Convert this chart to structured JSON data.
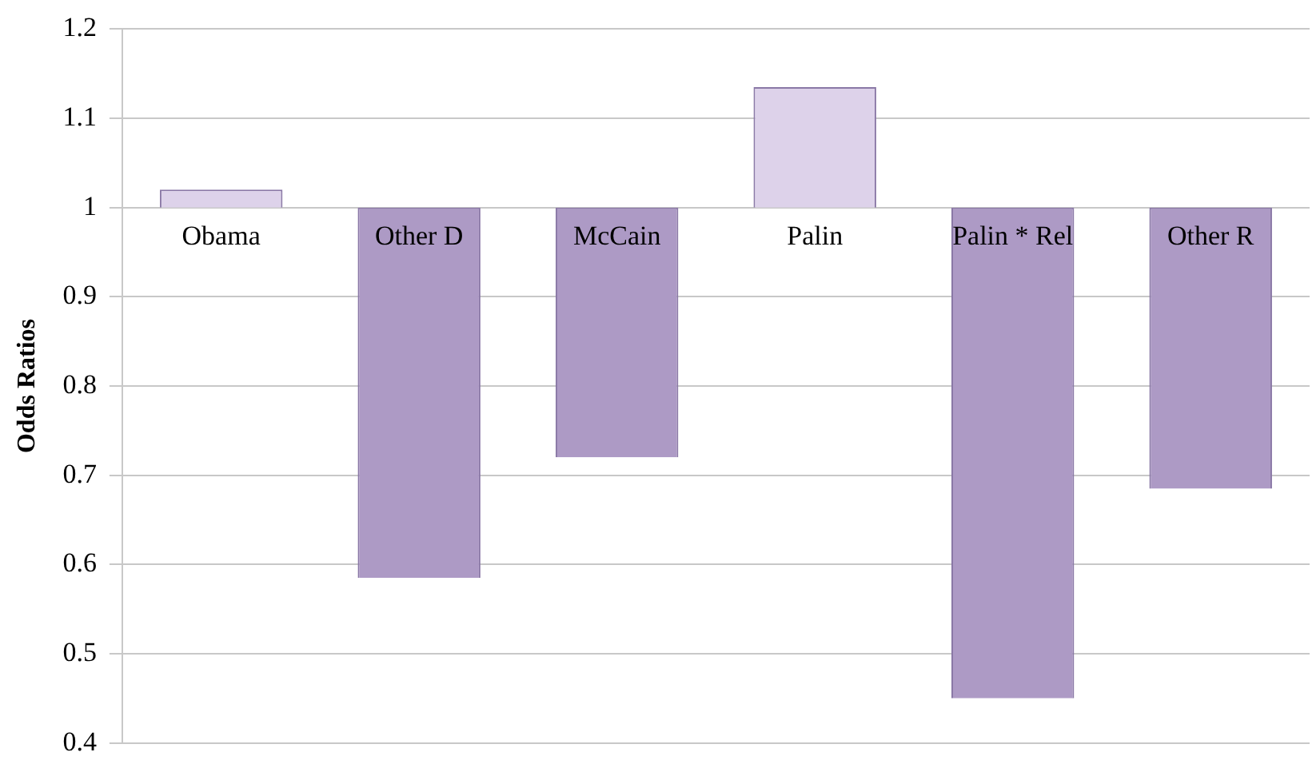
{
  "chart_data": {
    "type": "bar",
    "ylabel": "Odds Ratios",
    "categories": [
      "Obama",
      "Other D",
      "McCain",
      "Palin",
      "Palin * Rel",
      "Other R"
    ],
    "base": [
      1,
      1,
      1,
      1,
      1,
      1
    ],
    "values": [
      0.02,
      -0.415,
      -0.28,
      0.135,
      -0.55,
      -0.315
    ],
    "colors": [
      "#ddd2ea",
      "#ad9ac5",
      "#ad9ac5",
      "#ddd2ea",
      "#ad9ac5",
      "#ad9ac5"
    ],
    "ylim": [
      0.4,
      1.2
    ],
    "yticks": [
      0.4,
      0.5,
      0.6,
      0.7,
      0.8,
      0.9,
      1,
      1.1,
      1.2
    ],
    "grid": "y"
  }
}
